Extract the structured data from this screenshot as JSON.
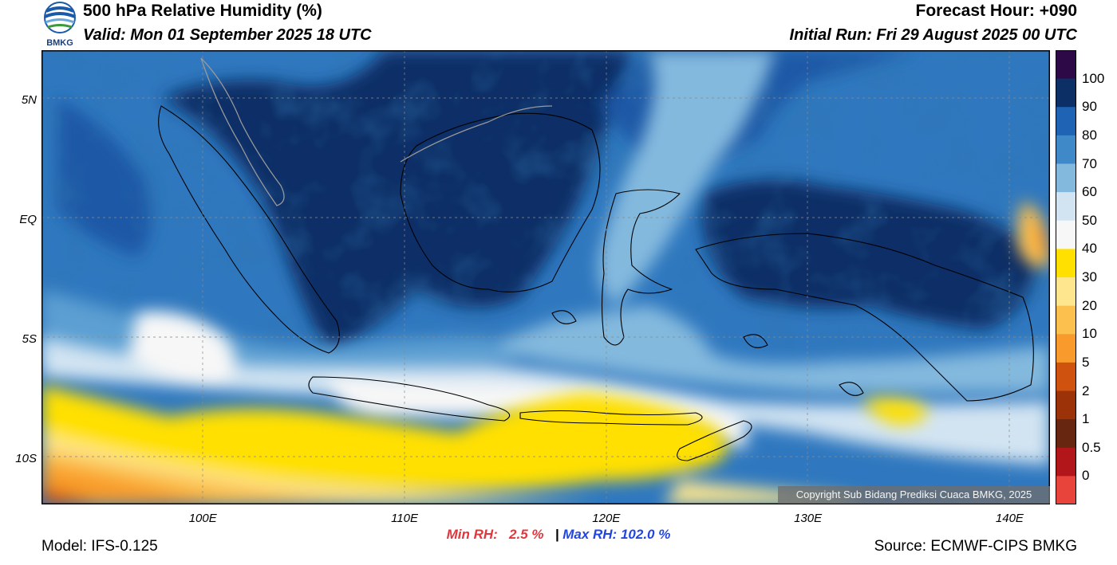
{
  "header": {
    "title": "500 hPa Relative Humidity (%)",
    "valid": "Valid: Mon 01 September 2025 18 UTC",
    "forecast_hour": "Forecast Hour: +090",
    "initial_run": "Initial Run: Fri 29 August 2025 00 UTC",
    "logo_text": "BMKG"
  },
  "map": {
    "lat_labels": [
      {
        "text": "5N",
        "lat": 5
      },
      {
        "text": "EQ",
        "lat": 0
      },
      {
        "text": "5S",
        "lat": -5
      },
      {
        "text": "10S",
        "lat": -10
      }
    ],
    "lon_labels": [
      {
        "text": "100E",
        "lon": 100
      },
      {
        "text": "110E",
        "lon": 110
      },
      {
        "text": "120E",
        "lon": 120
      },
      {
        "text": "130E",
        "lon": 130
      },
      {
        "text": "140E",
        "lon": 140
      }
    ],
    "lon_range": [
      92,
      142
    ],
    "lat_range": [
      -11.9,
      7.1
    ],
    "gridlines": true,
    "copyright": "Copyright Sub Bidang Prediksi Cuaca BMKG, 2025"
  },
  "colorbar": {
    "labels": [
      "100",
      "90",
      "80",
      "70",
      "60",
      "50",
      "40",
      "30",
      "20",
      "10",
      "5",
      "2",
      "1",
      "0.5",
      "0"
    ],
    "colors": [
      "#2d0a47",
      "#0c2f66",
      "#1f64b4",
      "#3f89c8",
      "#84b9de",
      "#d2e4f2",
      "#f7f7f7",
      "#ffe000",
      "#fde68e",
      "#fcc04e",
      "#f89b2c",
      "#cf530e",
      "#9c3208",
      "#672610",
      "#b3161a",
      "#e9443c"
    ]
  },
  "footer": {
    "min_label": "Min RH:",
    "min_value": "2.5 %",
    "separator": "|",
    "max_label": "Max RH:",
    "max_value": "102.0 %",
    "model": "Model: IFS-0.125",
    "source": "Source: ECMWF-CIPS BMKG"
  }
}
